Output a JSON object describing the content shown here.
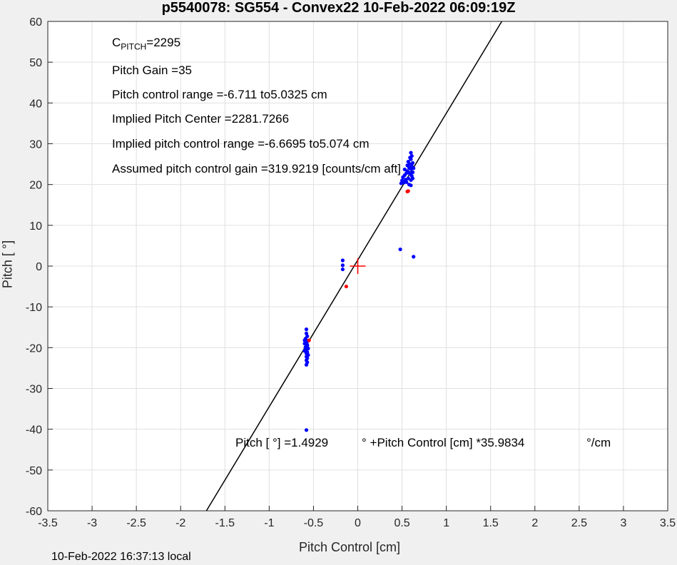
{
  "figure": {
    "title": "p5540078: SG554 - Convex22 10-Feb-2022 06:09:19Z",
    "footer": "10-Feb-2022 16:37:13 local"
  },
  "annotations": {
    "c_pitch_label": "C",
    "c_pitch_sub": "PITCH",
    "c_pitch_value": "=2295",
    "pitch_gain": "Pitch Gain =35",
    "pitch_control_range": "Pitch control range =-6.711 to5.0325 cm",
    "implied_center": "Implied Pitch Center =2281.7266",
    "implied_range": "Implied pitch control range =-6.6695 to5.074 cm",
    "assumed_gain": "Assumed pitch control gain =319.9219 [counts/cm aft]",
    "fit_eq_a": "Pitch [  °] =1.4929",
    "fit_eq_b": "° +Pitch Control [cm] *35.9834",
    "fit_eq_c": "°/cm"
  },
  "chart_data": {
    "type": "scatter",
    "xlabel": "Pitch Control [cm]",
    "ylabel": "Pitch [  °]",
    "xlim": [
      -3.5,
      3.5
    ],
    "ylim": [
      -60,
      60
    ],
    "xticks": [
      -3.5,
      -3,
      -2.5,
      -2,
      -1.5,
      -1,
      -0.5,
      0,
      0.5,
      1,
      1.5,
      2,
      2.5,
      3,
      3.5
    ],
    "yticks": [
      -60,
      -50,
      -40,
      -30,
      -20,
      -10,
      0,
      10,
      20,
      30,
      40,
      50,
      60
    ],
    "grid": true,
    "fit_line": {
      "intercept": 1.4929,
      "slope": 35.9834,
      "color": "#000000"
    },
    "center_marker": {
      "x": 0,
      "y": 0,
      "color": "#ff0000"
    },
    "series": [
      {
        "color": "#0000ff",
        "points": [
          [
            -0.58,
            -15.5
          ],
          [
            -0.58,
            -16.5
          ],
          [
            -0.57,
            -17.2
          ],
          [
            -0.59,
            -17.8
          ],
          [
            -0.56,
            -18.3
          ],
          [
            -0.58,
            -18.7
          ],
          [
            -0.6,
            -19.0
          ],
          [
            -0.57,
            -19.3
          ],
          [
            -0.58,
            -19.6
          ],
          [
            -0.59,
            -19.9
          ],
          [
            -0.56,
            -20.2
          ],
          [
            -0.58,
            -20.5
          ],
          [
            -0.6,
            -20.8
          ],
          [
            -0.57,
            -21.1
          ],
          [
            -0.58,
            -21.4
          ],
          [
            -0.56,
            -21.8
          ],
          [
            -0.58,
            -22.2
          ],
          [
            -0.57,
            -22.6
          ],
          [
            -0.58,
            -23.1
          ],
          [
            -0.57,
            -23.6
          ],
          [
            -0.58,
            -24.2
          ],
          [
            -0.6,
            -18.2
          ],
          [
            -0.59,
            -20.0
          ],
          [
            -0.57,
            -19.5
          ],
          [
            -0.58,
            -40.2
          ],
          [
            -0.17,
            1.4
          ],
          [
            -0.17,
            0.2
          ],
          [
            -0.17,
            -0.8
          ],
          [
            0.48,
            4.1
          ],
          [
            0.63,
            2.3
          ],
          [
            0.49,
            20.3
          ],
          [
            0.5,
            21.0
          ],
          [
            0.51,
            21.8
          ],
          [
            0.52,
            20.5
          ],
          [
            0.53,
            22.3
          ],
          [
            0.54,
            21.2
          ],
          [
            0.55,
            22.8
          ],
          [
            0.56,
            23.3
          ],
          [
            0.57,
            21.5
          ],
          [
            0.58,
            24.1
          ],
          [
            0.58,
            20.0
          ],
          [
            0.59,
            22.6
          ],
          [
            0.59,
            25.0
          ],
          [
            0.6,
            23.8
          ],
          [
            0.6,
            21.1
          ],
          [
            0.61,
            24.5
          ],
          [
            0.61,
            22.1
          ],
          [
            0.62,
            25.3
          ],
          [
            0.6,
            26.2
          ],
          [
            0.61,
            27.0
          ],
          [
            0.6,
            27.8
          ],
          [
            0.59,
            26.6
          ],
          [
            0.62,
            23.0
          ],
          [
            0.63,
            24.0
          ],
          [
            0.57,
            25.6
          ],
          [
            0.58,
            22.9
          ],
          [
            0.56,
            24.7
          ],
          [
            0.55,
            20.6
          ],
          [
            0.53,
            23.7
          ],
          [
            0.6,
            19.8
          ],
          [
            0.62,
            21.5
          ]
        ]
      },
      {
        "color": "#ff0000",
        "points": [
          [
            0.56,
            18.3
          ],
          [
            0.57,
            18.4
          ],
          [
            -0.55,
            -18.2
          ],
          [
            -0.13,
            -5.0
          ]
        ]
      }
    ]
  }
}
